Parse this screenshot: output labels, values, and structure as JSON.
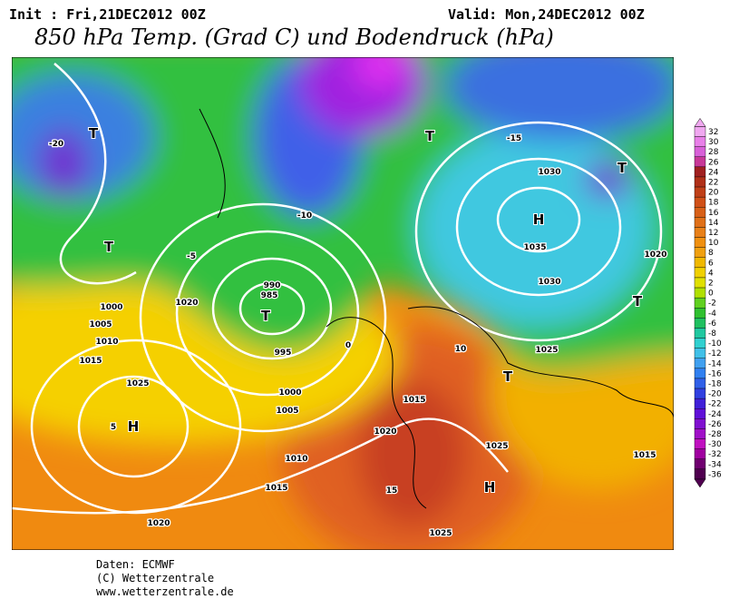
{
  "header": {
    "init": "Init : Fri,21DEC2012 00Z",
    "valid": "Valid: Mon,24DEC2012 00Z",
    "title": "850 hPa Temp. (Grad C) und Bodendruck (hPa)"
  },
  "legend": {
    "ticks": [
      32,
      30,
      28,
      26,
      24,
      22,
      20,
      18,
      16,
      14,
      12,
      10,
      8,
      6,
      4,
      2,
      0,
      -2,
      -4,
      -6,
      -8,
      -10,
      -12,
      -14,
      -16,
      -18,
      -20,
      -22,
      -24,
      -26,
      -28,
      -30,
      -32,
      -34,
      -36
    ],
    "colors": [
      "#f0a8f0",
      "#e880e8",
      "#d860d8",
      "#c83898",
      "#a02020",
      "#b03018",
      "#c04018",
      "#d05018",
      "#d86018",
      "#e07018",
      "#e88018",
      "#f09010",
      "#f0a010",
      "#f0b800",
      "#f0d000",
      "#e0e000",
      "#b0e000",
      "#60d020",
      "#30c030",
      "#20c060",
      "#20c8a0",
      "#30d0d0",
      "#40c0e8",
      "#40a0f0",
      "#3080f0",
      "#3060e8",
      "#3040e0",
      "#4020d8",
      "#6010d8",
      "#8010d0",
      "#a010c8",
      "#c010c0",
      "#a000a0",
      "#700070",
      "#500050"
    ]
  },
  "map_labels": [
    "H",
    "H",
    "H",
    "T",
    "T",
    "T",
    "T",
    "T",
    "T",
    "T",
    "990",
    "985",
    "995",
    "1000",
    "1005",
    "1010",
    "1015",
    "1020",
    "1025",
    "1030",
    "1035",
    "1030",
    "1025",
    "1020",
    "1015",
    "1025",
    "1020",
    "1015",
    "1025",
    "-20",
    "-15",
    "-10",
    "-5",
    "0",
    "5",
    "10",
    "15",
    "1000",
    "1005",
    "1010",
    "1015",
    "1020"
  ],
  "footer": [
    "Daten: ECMWF",
    "(C) Wetterzentrale",
    "www.wetterzentrale.de"
  ]
}
